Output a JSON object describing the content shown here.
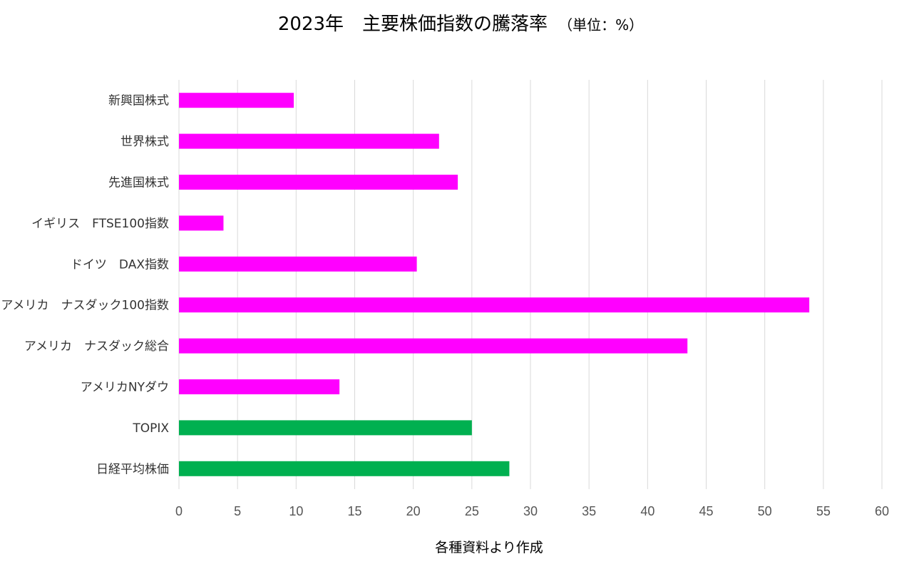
{
  "chart_data": {
    "type": "bar",
    "orientation": "horizontal",
    "title": "2023年　主要株価指数の騰落率",
    "title_unit": "（単位：%）",
    "xlabel": "",
    "ylabel": "",
    "xlim": [
      0,
      60
    ],
    "x_ticks": [
      0,
      5,
      10,
      15,
      20,
      25,
      30,
      35,
      40,
      45,
      50,
      55,
      60
    ],
    "grid": "vertical",
    "legend": "none",
    "categories": [
      "新興国株式",
      "世界株式",
      "先進国株式",
      "イギリス　FTSE100指数",
      "ドイツ　DAX指数",
      "アメリカ　ナスダック100指数",
      "アメリカ　ナスダック総合",
      "アメリカNYダウ",
      "TOPIX",
      "日経平均株価"
    ],
    "values": [
      9.8,
      22.2,
      23.8,
      3.8,
      20.3,
      53.8,
      43.4,
      13.7,
      25.0,
      28.2
    ],
    "bar_colors": [
      "#ff00ff",
      "#ff00ff",
      "#ff00ff",
      "#ff00ff",
      "#ff00ff",
      "#ff00ff",
      "#ff00ff",
      "#ff00ff",
      "#00b050",
      "#00b050"
    ],
    "source_note": "各種資料より作成"
  }
}
